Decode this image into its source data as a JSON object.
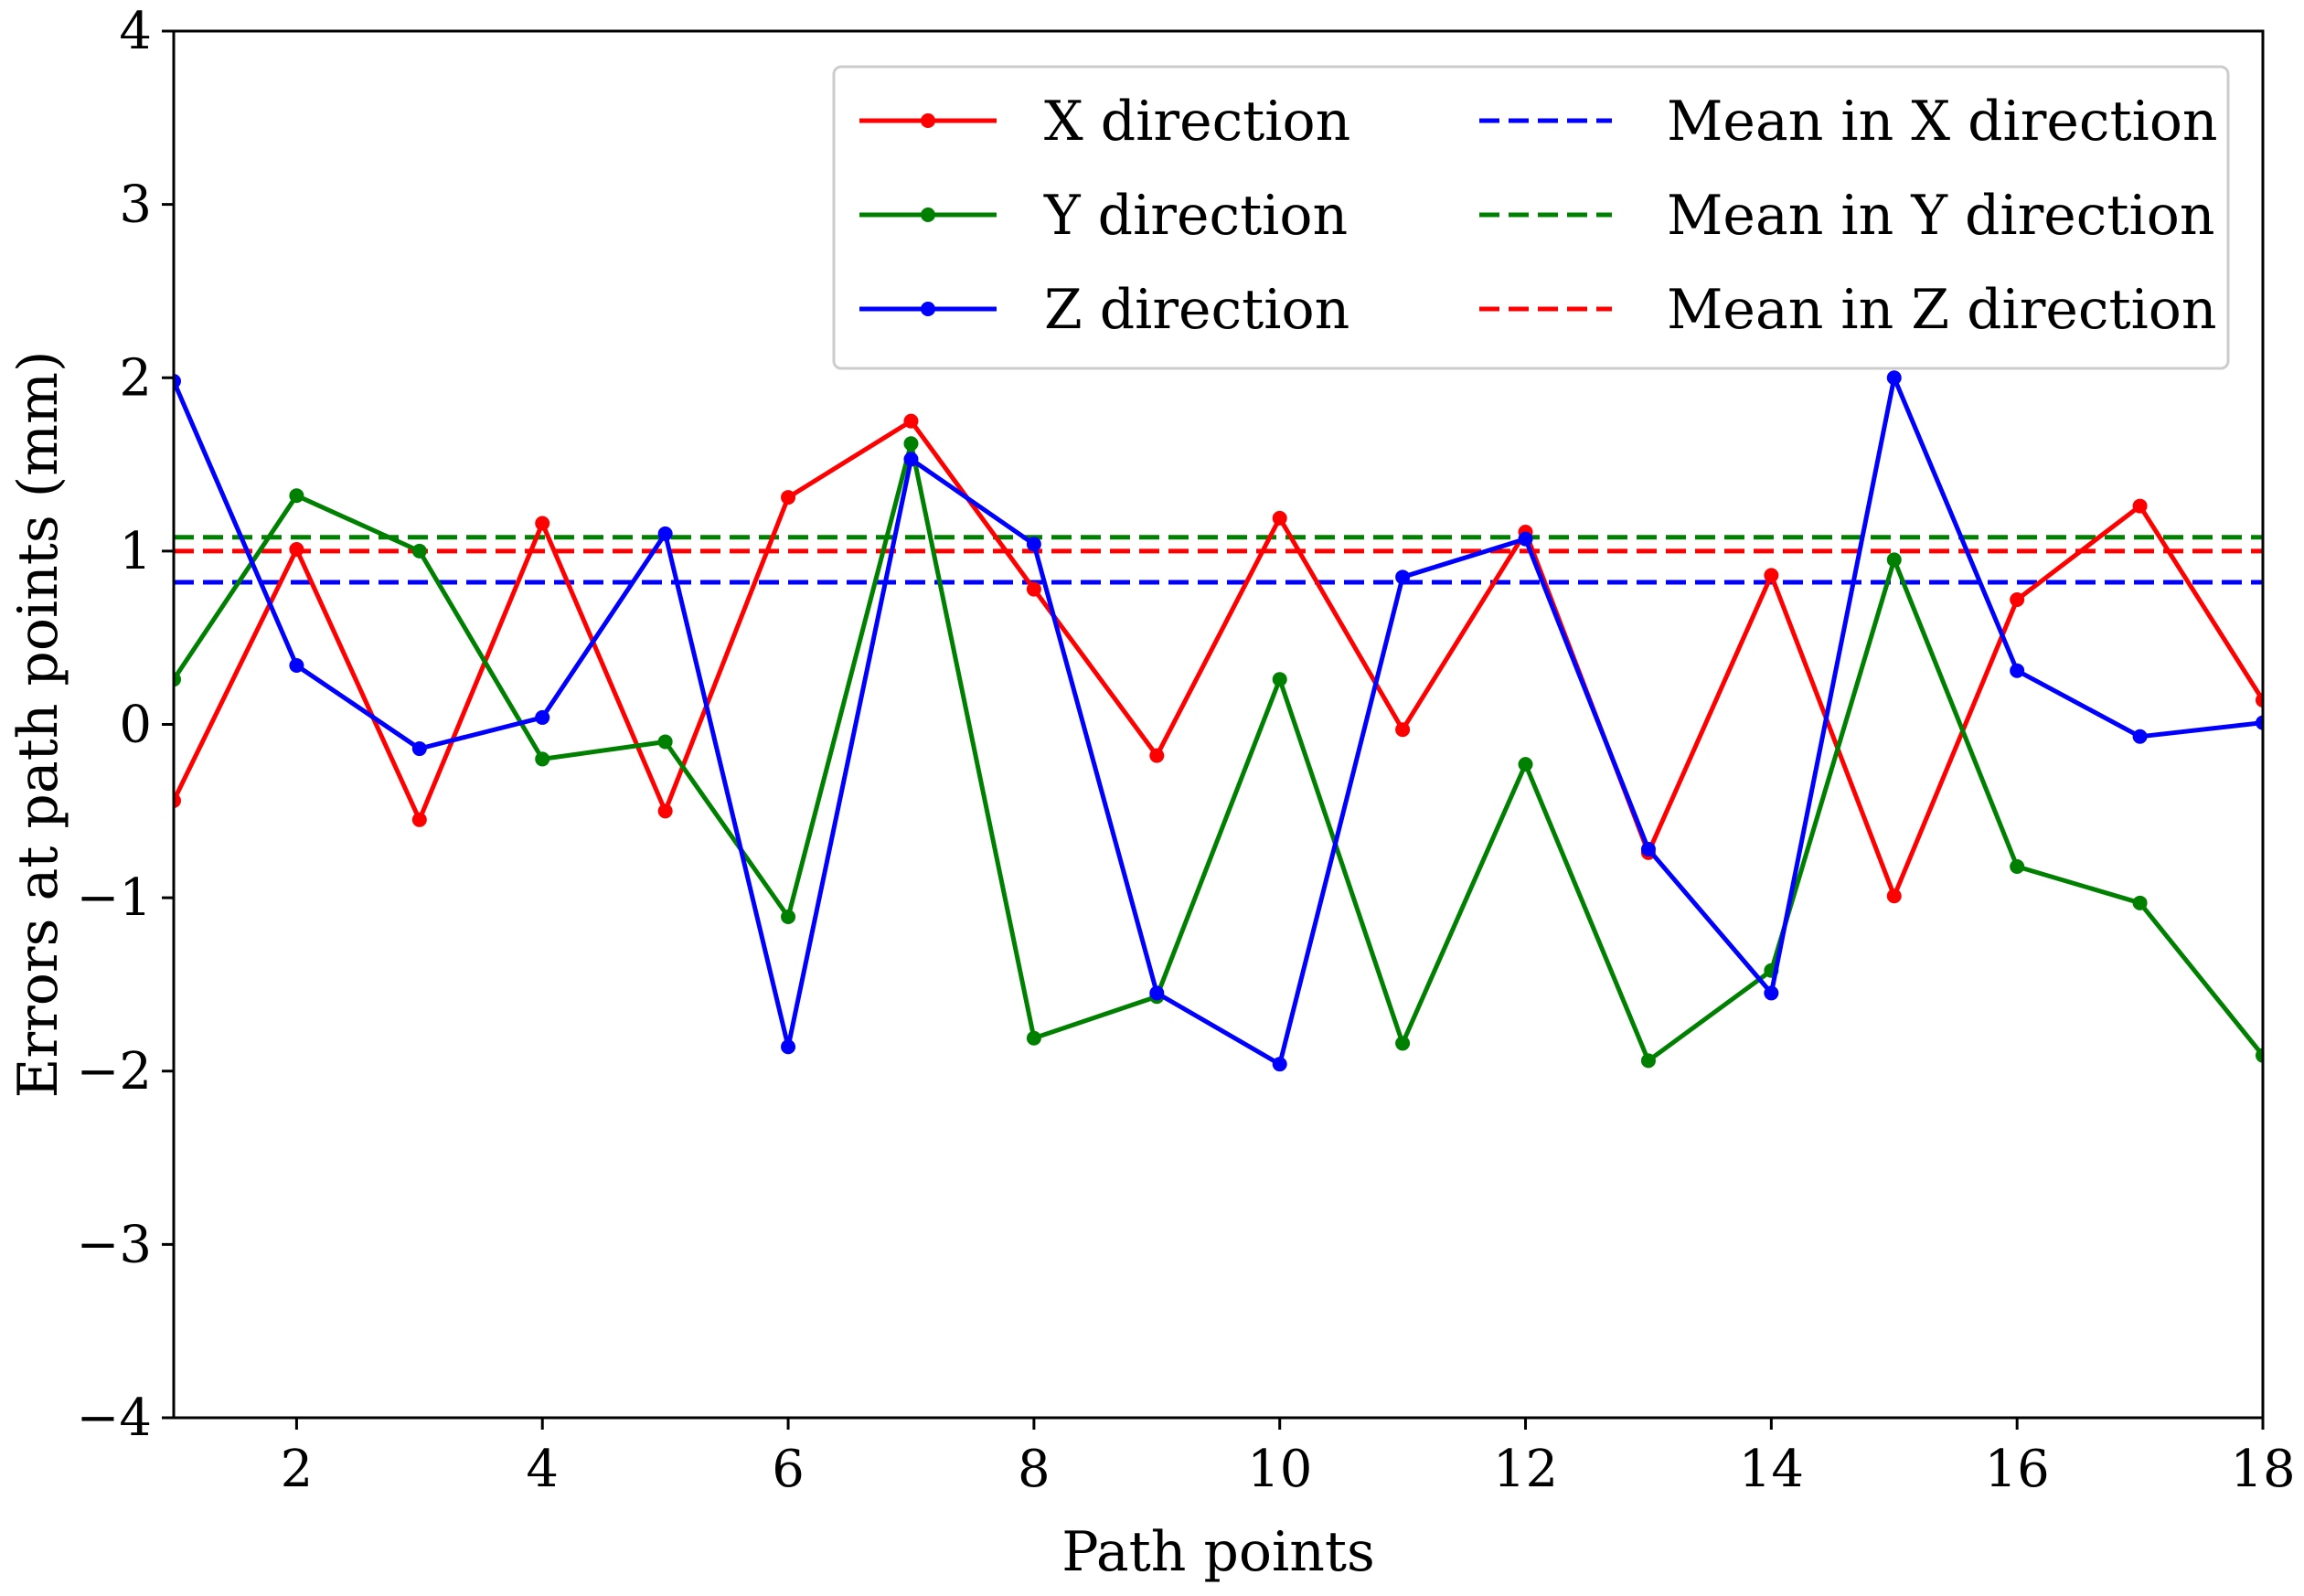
{
  "chart_data": {
    "type": "line",
    "title": "",
    "xlabel": "Path points",
    "ylabel": "Errors at path points (mm)",
    "xlim": [
      1,
      18
    ],
    "ylim": [
      -4,
      4
    ],
    "xticks": [
      2,
      4,
      6,
      8,
      10,
      12,
      14,
      16,
      18
    ],
    "yticks": [
      -4,
      -3,
      -2,
      -1,
      0,
      1,
      2,
      3,
      4
    ],
    "xtick_labels": [
      "2",
      "4",
      "6",
      "8",
      "10",
      "12",
      "14",
      "16",
      "18"
    ],
    "ytick_labels": [
      "−4",
      "−3",
      "−2",
      "−1",
      "0",
      "1",
      "2",
      "3",
      "4"
    ],
    "x": [
      1,
      2,
      3,
      4,
      5,
      6,
      7,
      8,
      9,
      10,
      11,
      12,
      13,
      14,
      15,
      16,
      17,
      18
    ],
    "series": [
      {
        "name": "X direction",
        "color": "#ff0000",
        "style": "solid-marker",
        "values": [
          -0.44,
          1.01,
          -0.55,
          1.16,
          -0.5,
          1.31,
          1.75,
          0.78,
          -0.18,
          1.19,
          -0.03,
          1.11,
          -0.74,
          0.86,
          -0.99,
          0.72,
          1.26,
          0.14
        ]
      },
      {
        "name": "Y direction",
        "color": "#008000",
        "style": "solid-marker",
        "values": [
          0.26,
          1.32,
          1.0,
          -0.2,
          -0.1,
          -1.11,
          1.62,
          -1.81,
          -1.57,
          0.26,
          -1.84,
          -0.23,
          -1.94,
          -1.42,
          0.95,
          -0.82,
          -1.03,
          -1.91
        ]
      },
      {
        "name": "Z direction",
        "color": "#0000ff",
        "style": "solid-marker",
        "values": [
          1.98,
          0.34,
          -0.14,
          0.04,
          1.1,
          -1.86,
          1.53,
          1.04,
          -1.55,
          -1.96,
          0.85,
          1.07,
          -0.72,
          -1.55,
          2.0,
          0.31,
          -0.07,
          0.01
        ]
      },
      {
        "name": "Mean in X direction",
        "color": "#0000ff",
        "style": "dashed",
        "constant": 0.82
      },
      {
        "name": "Mean in Y direction",
        "color": "#008000",
        "style": "dashed",
        "constant": 1.08
      },
      {
        "name": "Mean in Z direction",
        "color": "#ff0000",
        "style": "dashed",
        "constant": 1.0
      }
    ],
    "legend": {
      "placement": "top-right",
      "columns": 2,
      "entries": [
        "X direction",
        "Y direction",
        "Z direction",
        "Mean in X direction",
        "Mean in Y direction",
        "Mean in Z direction"
      ]
    },
    "grid": false
  }
}
